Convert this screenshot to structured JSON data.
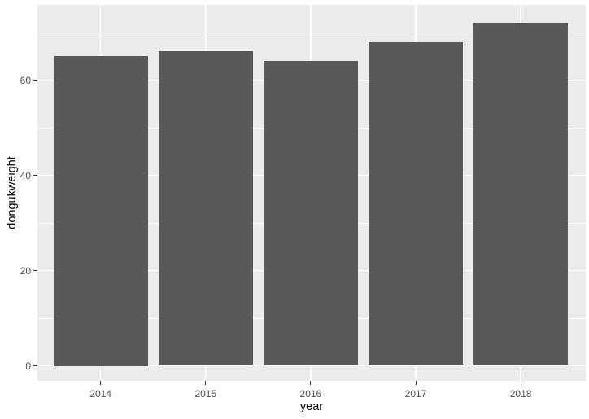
{
  "figure": {
    "background": "#FFFFFF"
  },
  "chart_data": {
    "type": "bar",
    "title": "",
    "categories": [
      "2014",
      "2015",
      "2016",
      "2017",
      "2018"
    ],
    "values": [
      65,
      66,
      64,
      68,
      72
    ],
    "xlabel": "year",
    "ylabel": "dongukweight",
    "ylim": [
      -3.2,
      75.8
    ],
    "yticks": [
      0,
      20,
      40,
      60
    ],
    "yticks_minor": [
      10,
      30,
      50,
      70
    ],
    "grid": "on",
    "legend": "none",
    "colors": {
      "bar_fill": "#595959",
      "panel_background": "#EBEBEB",
      "gridline": "#FFFFFF",
      "tick_label": "#4D4D4D",
      "axis_title": "#000000",
      "tick_mark": "#333333"
    }
  }
}
